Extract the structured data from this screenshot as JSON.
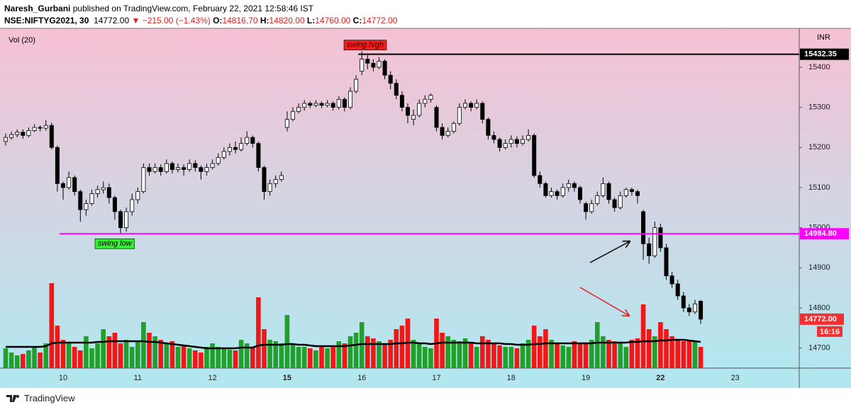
{
  "header": {
    "author": "Naresh_Gurbani",
    "published": "published on TradingView.com, February 22, 2021 12:58:46 IST",
    "symbol": "NSE:NIFTYG2021, 30",
    "last": "14772.00",
    "change": "▼ −215.00 (−1.43%)",
    "ohlc": [
      {
        "label": "O:",
        "value": "14816.70"
      },
      {
        "label": "H:",
        "value": "14820.00"
      },
      {
        "label": "L:",
        "value": "14760.00"
      },
      {
        "label": "C:",
        "value": "14772.00"
      }
    ]
  },
  "chart_data": {
    "type": "candlestick",
    "indicator_label": "Vol (20)",
    "currency": "INR",
    "categories": [
      null,
      null,
      null,
      null,
      null,
      null,
      null,
      null,
      null,
      null,
      "10",
      null,
      null,
      null,
      null,
      null,
      null,
      null,
      null,
      null,
      null,
      null,
      null,
      "11",
      null,
      null,
      null,
      null,
      null,
      null,
      null,
      null,
      null,
      null,
      null,
      null,
      "12",
      null,
      null,
      null,
      null,
      null,
      null,
      null,
      null,
      null,
      null,
      null,
      null,
      "15",
      null,
      null,
      null,
      null,
      null,
      null,
      null,
      null,
      null,
      null,
      null,
      null,
      "16",
      null,
      null,
      null,
      null,
      null,
      null,
      null,
      null,
      null,
      null,
      null,
      null,
      "17",
      null,
      null,
      null,
      null,
      null,
      null,
      null,
      null,
      null,
      null,
      null,
      null,
      "18",
      null,
      null,
      null,
      null,
      null,
      null,
      null,
      null,
      null,
      null,
      null,
      null,
      "19",
      null,
      null,
      null,
      null,
      null,
      null,
      null,
      null,
      null,
      null,
      null,
      null,
      "22",
      null,
      null,
      null,
      null,
      null,
      null,
      null
    ],
    "next_category": "23",
    "candles": [
      [
        15215,
        15235,
        15205,
        15225
      ],
      [
        15225,
        15240,
        15220,
        15232
      ],
      [
        15232,
        15245,
        15225,
        15238
      ],
      [
        15238,
        15245,
        15222,
        15230
      ],
      [
        15230,
        15250,
        15225,
        15242
      ],
      [
        15242,
        15258,
        15238,
        15250
      ],
      [
        15250,
        15255,
        15240,
        15248
      ],
      [
        15248,
        15268,
        15242,
        15255
      ],
      [
        15255,
        15262,
        15195,
        15200
      ],
      [
        15200,
        15205,
        15090,
        15110
      ],
      [
        15110,
        15115,
        15070,
        15100
      ],
      [
        15100,
        15140,
        15095,
        15125
      ],
      [
        15125,
        15130,
        15080,
        15090
      ],
      [
        15090,
        15095,
        15015,
        15045
      ],
      [
        15045,
        15070,
        15030,
        15060
      ],
      [
        15060,
        15095,
        15055,
        15085
      ],
      [
        15085,
        15105,
        15075,
        15095
      ],
      [
        15095,
        15115,
        15085,
        15100
      ],
      [
        15100,
        15110,
        15060,
        15075
      ],
      [
        15075,
        15080,
        15020,
        15040
      ],
      [
        15040,
        15045,
        14985,
        15000
      ],
      [
        15000,
        15050,
        14990,
        15040
      ],
      [
        15040,
        15085,
        15030,
        15070
      ],
      [
        15070,
        15100,
        15060,
        15090
      ],
      [
        15090,
        15160,
        15085,
        15150
      ],
      [
        15150,
        15160,
        15130,
        15140
      ],
      [
        15140,
        15160,
        15135,
        15150
      ],
      [
        15150,
        15158,
        15130,
        15140
      ],
      [
        15140,
        15170,
        15135,
        15160
      ],
      [
        15160,
        15165,
        15135,
        15145
      ],
      [
        15145,
        15160,
        15138,
        15150
      ],
      [
        15150,
        15158,
        15130,
        15145
      ],
      [
        15145,
        15170,
        15140,
        15160
      ],
      [
        15160,
        15168,
        15140,
        15150
      ],
      [
        15150,
        15155,
        15120,
        15140
      ],
      [
        15140,
        15160,
        15130,
        15150
      ],
      [
        15150,
        15170,
        15145,
        15160
      ],
      [
        15160,
        15185,
        15155,
        15175
      ],
      [
        15175,
        15200,
        15170,
        15190
      ],
      [
        15190,
        15210,
        15180,
        15200
      ],
      [
        15200,
        15215,
        15185,
        15195
      ],
      [
        15195,
        15225,
        15190,
        15210
      ],
      [
        15210,
        15240,
        15205,
        15225
      ],
      [
        15225,
        15230,
        15200,
        15210
      ],
      [
        15210,
        15215,
        15140,
        15150
      ],
      [
        15150,
        15155,
        15070,
        15090
      ],
      [
        15090,
        15120,
        15080,
        15110
      ],
      [
        15110,
        15130,
        15100,
        15120
      ],
      [
        15120,
        15140,
        15115,
        15130
      ],
      [
        15250,
        15290,
        15240,
        15270
      ],
      [
        15270,
        15300,
        15265,
        15290
      ],
      [
        15290,
        15310,
        15285,
        15300
      ],
      [
        15300,
        15318,
        15292,
        15310
      ],
      [
        15310,
        15315,
        15298,
        15305
      ],
      [
        15305,
        15318,
        15300,
        15310
      ],
      [
        15310,
        15315,
        15298,
        15305
      ],
      [
        15305,
        15318,
        15300,
        15310
      ],
      [
        15310,
        15315,
        15292,
        15300
      ],
      [
        15300,
        15328,
        15295,
        15320
      ],
      [
        15320,
        15325,
        15290,
        15300
      ],
      [
        15300,
        15350,
        15295,
        15340
      ],
      [
        15340,
        15380,
        15335,
        15370
      ],
      [
        15390,
        15440,
        15380,
        15420
      ],
      [
        15420,
        15430,
        15395,
        15410
      ],
      [
        15410,
        15420,
        15390,
        15400
      ],
      [
        15400,
        15425,
        15395,
        15415
      ],
      [
        15415,
        15420,
        15370,
        15380
      ],
      [
        15380,
        15390,
        15345,
        15360
      ],
      [
        15360,
        15370,
        15320,
        15330
      ],
      [
        15330,
        15340,
        15290,
        15300
      ],
      [
        15300,
        15310,
        15260,
        15280
      ],
      [
        15270,
        15295,
        15255,
        15280
      ],
      [
        15280,
        15320,
        15275,
        15310
      ],
      [
        15310,
        15330,
        15300,
        15320
      ],
      [
        15320,
        15335,
        15312,
        15330
      ],
      [
        15300,
        15305,
        15240,
        15250
      ],
      [
        15250,
        15260,
        15220,
        15230
      ],
      [
        15230,
        15250,
        15225,
        15240
      ],
      [
        15240,
        15265,
        15235,
        15260
      ],
      [
        15260,
        15310,
        15255,
        15300
      ],
      [
        15300,
        15320,
        15295,
        15310
      ],
      [
        15310,
        15315,
        15290,
        15300
      ],
      [
        15300,
        15320,
        15295,
        15310
      ],
      [
        15310,
        15315,
        15260,
        15270
      ],
      [
        15270,
        15275,
        15220,
        15230
      ],
      [
        15230,
        15240,
        15210,
        15220
      ],
      [
        15220,
        15225,
        15190,
        15200
      ],
      [
        15200,
        15220,
        15195,
        15210
      ],
      [
        15210,
        15230,
        15200,
        15220
      ],
      [
        15220,
        15228,
        15200,
        15210
      ],
      [
        15210,
        15230,
        15205,
        15220
      ],
      [
        15220,
        15245,
        15215,
        15230
      ],
      [
        15230,
        15235,
        15125,
        15130
      ],
      [
        15130,
        15140,
        15100,
        15110
      ],
      [
        15110,
        15115,
        15075,
        15080
      ],
      [
        15080,
        15100,
        15075,
        15090
      ],
      [
        15090,
        15095,
        15070,
        15080
      ],
      [
        15080,
        15110,
        15075,
        15100
      ],
      [
        15100,
        15120,
        15090,
        15110
      ],
      [
        15110,
        15115,
        15090,
        15100
      ],
      [
        15100,
        15105,
        15060,
        15070
      ],
      [
        15060,
        15065,
        15020,
        15040
      ],
      [
        15040,
        15070,
        15035,
        15060
      ],
      [
        15060,
        15090,
        15055,
        15080
      ],
      [
        15080,
        15125,
        15075,
        15110
      ],
      [
        15110,
        15115,
        15060,
        15070
      ],
      [
        15070,
        15075,
        15040,
        15050
      ],
      [
        15050,
        15090,
        15045,
        15080
      ],
      [
        15080,
        15100,
        15075,
        15095
      ],
      [
        15095,
        15100,
        15080,
        15090
      ],
      [
        15090,
        15095,
        15060,
        15080
      ],
      [
        15040,
        15045,
        14920,
        14960
      ],
      [
        14960,
        14975,
        14910,
        14930
      ],
      [
        14930,
        15015,
        14925,
        15000
      ],
      [
        15000,
        15010,
        14940,
        14950
      ],
      [
        14950,
        14960,
        14870,
        14880
      ],
      [
        14880,
        14890,
        14850,
        14860
      ],
      [
        14860,
        14870,
        14820,
        14830
      ],
      [
        14830,
        14840,
        14790,
        14800
      ],
      [
        14800,
        14810,
        14780,
        14790
      ],
      [
        14790,
        14820,
        14785,
        14810
      ],
      [
        14816.7,
        14820,
        14760,
        14772
      ]
    ],
    "up_color": "#ffffff",
    "down_color": "#000000",
    "volume": {
      "values": [
        28,
        22,
        18,
        20,
        25,
        30,
        22,
        35,
        120,
        60,
        40,
        35,
        30,
        25,
        45,
        28,
        35,
        55,
        45,
        50,
        35,
        40,
        30,
        38,
        65,
        50,
        45,
        40,
        35,
        38,
        30,
        32,
        28,
        25,
        22,
        30,
        35,
        30,
        28,
        26,
        25,
        40,
        35,
        30,
        100,
        55,
        40,
        38,
        35,
        75,
        35,
        30,
        30,
        28,
        25,
        32,
        28,
        30,
        38,
        35,
        45,
        50,
        65,
        45,
        42,
        38,
        35,
        40,
        55,
        60,
        70,
        40,
        35,
        30,
        28,
        70,
        50,
        45,
        40,
        38,
        42,
        35,
        30,
        45,
        40,
        35,
        32,
        30,
        30,
        28,
        35,
        40,
        60,
        45,
        55,
        40,
        35,
        32,
        30,
        38,
        35,
        35,
        40,
        65,
        45,
        40,
        38,
        35,
        30,
        40,
        42,
        90,
        55,
        45,
        65,
        55,
        45,
        40,
        38,
        40,
        38,
        30
      ],
      "ma": [
        30,
        30,
        30,
        30,
        30,
        30,
        30,
        31,
        35,
        36,
        36,
        36,
        36,
        36,
        36,
        36,
        37,
        37,
        38,
        38,
        38,
        38,
        38,
        38,
        38,
        37,
        37,
        36,
        35,
        34,
        33,
        32,
        31,
        30,
        29,
        28,
        28,
        28,
        28,
        28,
        28,
        29,
        29,
        29,
        32,
        33,
        33,
        33,
        33,
        34,
        34,
        33,
        33,
        32,
        31,
        31,
        31,
        31,
        31,
        31,
        32,
        33,
        34,
        34,
        34,
        34,
        34,
        34,
        35,
        35,
        36,
        36,
        35,
        35,
        34,
        35,
        36,
        36,
        36,
        36,
        36,
        36,
        35,
        35,
        35,
        35,
        35,
        34,
        34,
        33,
        33,
        33,
        34,
        34,
        35,
        35,
        35,
        35,
        35,
        35,
        35,
        35,
        35,
        36,
        36,
        36,
        36,
        36,
        36,
        37,
        37,
        38,
        38,
        38,
        39,
        39,
        40,
        40,
        40,
        39,
        38,
        37
      ],
      "up_color": "#22a02c",
      "down_color": "#f11717",
      "ma_color": "#000000",
      "ylim": [
        0,
        120
      ]
    },
    "ylim": [
      14650,
      15497
    ],
    "yticks": [
      14700,
      14800,
      14900,
      15000,
      15100,
      15200,
      15300,
      15400
    ],
    "levels": [
      {
        "name": "swing high",
        "price": 15432.35,
        "color": "#000000",
        "tag_color": "#ff1a1a"
      },
      {
        "name": "swing low",
        "price": {
          "value": 14984.8,
          "label": "14984.80"
        },
        "color": "#ff00ff",
        "tag_color": "#33ee33"
      }
    ],
    "last_price": {
      "value": 14772,
      "label": "14772.00"
    },
    "last_color": "#f23030",
    "countdown": "16:16"
  },
  "footer": {
    "brand": "TradingView"
  }
}
